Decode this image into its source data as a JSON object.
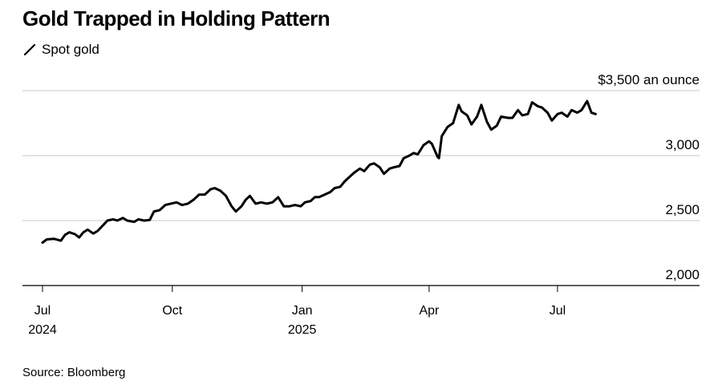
{
  "title": "Gold Trapped in Holding Pattern",
  "source": "Source: Bloomberg",
  "chart_data": {
    "type": "line",
    "title": "Gold Trapped in Holding Pattern",
    "ylim": [
      2000,
      3500
    ],
    "y_ticks": [
      {
        "value": 3500,
        "label": "$3,500 an ounce"
      },
      {
        "value": 3000,
        "label": "3,000"
      },
      {
        "value": 2500,
        "label": "2,500"
      },
      {
        "value": 2000,
        "label": "2,000"
      }
    ],
    "x_range": [
      "2024-07-01",
      "2025-09-30"
    ],
    "x_ticks": [
      {
        "date": "2024-07-01",
        "label": "Jul",
        "sublabel": "2024"
      },
      {
        "date": "2024-10-01",
        "label": "Oct",
        "sublabel": ""
      },
      {
        "date": "2025-01-01",
        "label": "Jan",
        "sublabel": "2025"
      },
      {
        "date": "2025-04-01",
        "label": "Apr",
        "sublabel": ""
      },
      {
        "date": "2025-07-01",
        "label": "Jul",
        "sublabel": ""
      }
    ],
    "grid": true,
    "legend_position": "top-left",
    "series": [
      {
        "name": "Spot gold",
        "color": "#000000",
        "points": [
          [
            "2024-07-01",
            2330
          ],
          [
            "2024-07-04",
            2355
          ],
          [
            "2024-07-09",
            2360
          ],
          [
            "2024-07-14",
            2345
          ],
          [
            "2024-07-17",
            2390
          ],
          [
            "2024-07-20",
            2410
          ],
          [
            "2024-07-24",
            2395
          ],
          [
            "2024-07-27",
            2370
          ],
          [
            "2024-07-30",
            2410
          ],
          [
            "2024-08-02",
            2430
          ],
          [
            "2024-08-06",
            2400
          ],
          [
            "2024-08-09",
            2420
          ],
          [
            "2024-08-13",
            2465
          ],
          [
            "2024-08-16",
            2500
          ],
          [
            "2024-08-20",
            2510
          ],
          [
            "2024-08-23",
            2500
          ],
          [
            "2024-08-27",
            2520
          ],
          [
            "2024-08-30",
            2500
          ],
          [
            "2024-09-04",
            2490
          ],
          [
            "2024-09-07",
            2510
          ],
          [
            "2024-09-11",
            2500
          ],
          [
            "2024-09-15",
            2505
          ],
          [
            "2024-09-18",
            2570
          ],
          [
            "2024-09-22",
            2580
          ],
          [
            "2024-09-26",
            2620
          ],
          [
            "2024-09-30",
            2630
          ],
          [
            "2024-10-04",
            2640
          ],
          [
            "2024-10-08",
            2620
          ],
          [
            "2024-10-12",
            2630
          ],
          [
            "2024-10-16",
            2660
          ],
          [
            "2024-10-20",
            2700
          ],
          [
            "2024-10-24",
            2700
          ],
          [
            "2024-10-28",
            2740
          ],
          [
            "2024-10-31",
            2750
          ],
          [
            "2024-11-04",
            2730
          ],
          [
            "2024-11-08",
            2690
          ],
          [
            "2024-11-12",
            2610
          ],
          [
            "2024-11-15",
            2570
          ],
          [
            "2024-11-19",
            2610
          ],
          [
            "2024-11-22",
            2660
          ],
          [
            "2024-11-25",
            2690
          ],
          [
            "2024-11-29",
            2630
          ],
          [
            "2024-12-03",
            2640
          ],
          [
            "2024-12-07",
            2630
          ],
          [
            "2024-12-11",
            2640
          ],
          [
            "2024-12-15",
            2680
          ],
          [
            "2024-12-19",
            2610
          ],
          [
            "2024-12-23",
            2610
          ],
          [
            "2024-12-27",
            2620
          ],
          [
            "2024-12-31",
            2610
          ],
          [
            "2025-01-03",
            2640
          ],
          [
            "2025-01-07",
            2650
          ],
          [
            "2025-01-10",
            2680
          ],
          [
            "2025-01-13",
            2680
          ],
          [
            "2025-01-17",
            2700
          ],
          [
            "2025-01-21",
            2720
          ],
          [
            "2025-01-24",
            2750
          ],
          [
            "2025-01-28",
            2760
          ],
          [
            "2025-01-31",
            2800
          ],
          [
            "2025-02-04",
            2840
          ],
          [
            "2025-02-07",
            2870
          ],
          [
            "2025-02-11",
            2900
          ],
          [
            "2025-02-14",
            2880
          ],
          [
            "2025-02-18",
            2930
          ],
          [
            "2025-02-21",
            2940
          ],
          [
            "2025-02-25",
            2910
          ],
          [
            "2025-02-28",
            2860
          ],
          [
            "2025-03-04",
            2900
          ],
          [
            "2025-03-07",
            2910
          ],
          [
            "2025-03-11",
            2920
          ],
          [
            "2025-03-14",
            2980
          ],
          [
            "2025-03-18",
            3000
          ],
          [
            "2025-03-21",
            3020
          ],
          [
            "2025-03-24",
            3010
          ],
          [
            "2025-03-28",
            3080
          ],
          [
            "2025-04-01",
            3110
          ],
          [
            "2025-04-03",
            3090
          ],
          [
            "2025-04-07",
            2990
          ],
          [
            "2025-04-08",
            2980
          ],
          [
            "2025-04-10",
            3150
          ],
          [
            "2025-04-14",
            3220
          ],
          [
            "2025-04-18",
            3250
          ],
          [
            "2025-04-22",
            3390
          ],
          [
            "2025-04-24",
            3340
          ],
          [
            "2025-04-28",
            3310
          ],
          [
            "2025-05-01",
            3240
          ],
          [
            "2025-05-05",
            3300
          ],
          [
            "2025-05-08",
            3390
          ],
          [
            "2025-05-12",
            3260
          ],
          [
            "2025-05-15",
            3200
          ],
          [
            "2025-05-19",
            3230
          ],
          [
            "2025-05-22",
            3300
          ],
          [
            "2025-05-27",
            3290
          ],
          [
            "2025-05-30",
            3290
          ],
          [
            "2025-06-03",
            3350
          ],
          [
            "2025-06-06",
            3310
          ],
          [
            "2025-06-10",
            3320
          ],
          [
            "2025-06-13",
            3410
          ],
          [
            "2025-06-17",
            3380
          ],
          [
            "2025-06-20",
            3370
          ],
          [
            "2025-06-24",
            3330
          ],
          [
            "2025-06-27",
            3270
          ],
          [
            "2025-07-01",
            3320
          ],
          [
            "2025-07-04",
            3330
          ],
          [
            "2025-07-08",
            3300
          ],
          [
            "2025-07-11",
            3350
          ],
          [
            "2025-07-15",
            3330
          ],
          [
            "2025-07-18",
            3350
          ],
          [
            "2025-07-22",
            3420
          ],
          [
            "2025-07-25",
            3330
          ],
          [
            "2025-07-28",
            3320
          ]
        ]
      }
    ]
  }
}
